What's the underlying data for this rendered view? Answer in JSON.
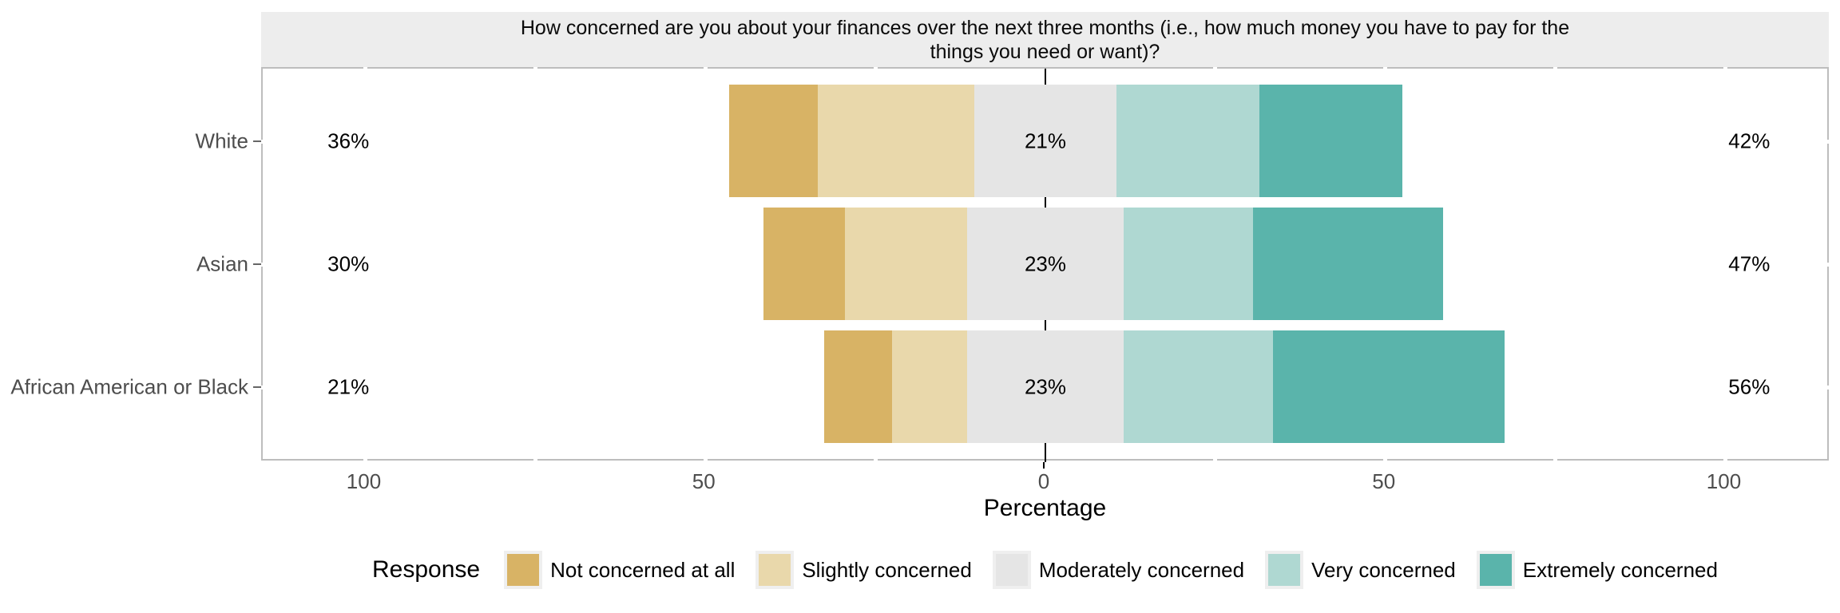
{
  "title": {
    "line1": "How concerned are you about your finances over the next three months (i.e., how much money you have to pay for the",
    "line2": "things you need or want)?"
  },
  "x_axis": {
    "label": "Percentage",
    "tick_labels": [
      "100",
      "50",
      "0",
      "50",
      "100"
    ],
    "tick_values": [
      -100,
      -50,
      0,
      50,
      100
    ],
    "minor_tick_values": [
      -100,
      -75,
      -50,
      -25,
      25,
      50,
      75,
      100
    ]
  },
  "legend": {
    "title": "Response",
    "items": [
      {
        "label": "Not concerned at all",
        "color": "#d8b365"
      },
      {
        "label": "Slightly concerned",
        "color": "#e9d8ab"
      },
      {
        "label": "Moderately concerned",
        "color": "#e5e5e5"
      },
      {
        "label": "Very concerned",
        "color": "#afd8d2"
      },
      {
        "label": "Extremely concerned",
        "color": "#5ab4ab"
      }
    ]
  },
  "chart_data": {
    "type": "bar",
    "subtype": "diverging-stacked-likert",
    "title": "How concerned are you about your finances over the next three months (i.e., how much money you have to pay for the things you need or want)?",
    "xlabel": "Percentage",
    "ylabel": "",
    "xlim": [
      -115,
      115
    ],
    "x_ticks": [
      -100,
      -50,
      0,
      50,
      100
    ],
    "grid": "off",
    "legend_position": "bottom",
    "legend_title": "Response",
    "categories": [
      "White",
      "Asian",
      "African American or Black"
    ],
    "responses": [
      "Not concerned at all",
      "Slightly concerned",
      "Moderately concerned",
      "Very concerned",
      "Extremely concerned"
    ],
    "colors": [
      "#d8b365",
      "#e9d8ab",
      "#e5e5e5",
      "#afd8d2",
      "#5ab4ab"
    ],
    "series": [
      {
        "name": "Not concerned at all",
        "values": [
          13,
          12,
          10
        ]
      },
      {
        "name": "Slightly concerned",
        "values": [
          23,
          18,
          11
        ]
      },
      {
        "name": "Moderately concerned",
        "values": [
          21,
          23,
          23
        ]
      },
      {
        "name": "Very concerned",
        "values": [
          21,
          19,
          22
        ]
      },
      {
        "name": "Extremely concerned",
        "values": [
          21,
          28,
          34
        ]
      }
    ],
    "row_annotations": [
      {
        "category": "White",
        "left_total": "36%",
        "middle": "21%",
        "right_total": "42%"
      },
      {
        "category": "Asian",
        "left_total": "30%",
        "middle": "23%",
        "right_total": "47%"
      },
      {
        "category": "African American or Black",
        "left_total": "21%",
        "middle": "23%",
        "right_total": "56%"
      }
    ]
  }
}
